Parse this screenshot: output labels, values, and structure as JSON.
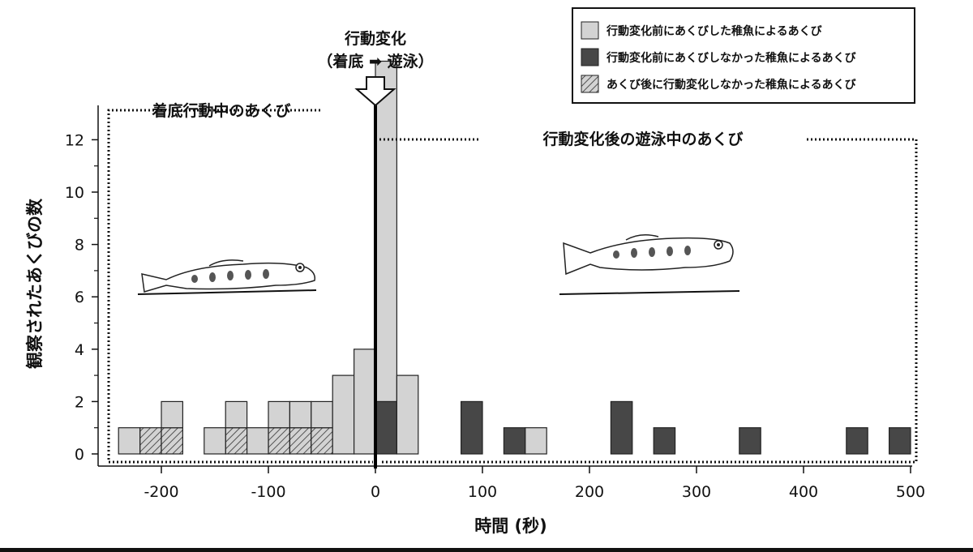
{
  "chart_data": {
    "type": "bar",
    "xlabel": "時間 (秒)",
    "ylabel": "観察されたあくびの数",
    "xlim": [
      -250,
      500
    ],
    "ylim": [
      0,
      13.5
    ],
    "x_ticks": [
      -200,
      -100,
      0,
      100,
      200,
      300,
      400,
      500
    ],
    "x_tick_labels": [
      "-200",
      "-100",
      "0",
      "100",
      "200",
      "300",
      "400",
      "500"
    ],
    "y_ticks": [
      0,
      2,
      4,
      6,
      8,
      10,
      12
    ],
    "y_tick_labels": [
      "0",
      "2",
      "4",
      "6",
      "8",
      "10",
      "12"
    ],
    "bin_width": 20,
    "stacked": true,
    "series": [
      {
        "name": "行動変化前にあくびした稚魚によるあくび",
        "color": "#d3d3d3",
        "pattern": "solid",
        "x": [
          -240,
          -220,
          -200,
          -160,
          -140,
          -120,
          -100,
          -80,
          -60,
          -40,
          -20,
          0,
          20,
          140
        ],
        "values": [
          1,
          0,
          1,
          1,
          1,
          1,
          1,
          1,
          1,
          3,
          4,
          13,
          3,
          1
        ]
      },
      {
        "name": "行動変化前にあくびしなかった稚魚によるあくび",
        "color": "#474747",
        "pattern": "solid",
        "x": [
          0,
          80,
          120,
          220,
          260,
          340,
          440,
          480
        ],
        "values": [
          2,
          2,
          1,
          2,
          1,
          1,
          1,
          1
        ]
      },
      {
        "name": "あくび後に行動変化しなかった稚魚によるあくび",
        "color": "#d3d3d3",
        "pattern": "hatched",
        "x": [
          -220,
          -200,
          -140,
          -100,
          -80,
          -60
        ],
        "values": [
          1,
          1,
          1,
          1,
          1,
          1
        ]
      }
    ],
    "legend_position": "top-right",
    "grid": false,
    "annotations": {
      "change_title": "行動変化",
      "change_sub": "（着底 ➡ 遊泳）",
      "before_label": "着底行動中のあくび",
      "after_label": "行動変化後の遊泳中のあくび"
    }
  }
}
